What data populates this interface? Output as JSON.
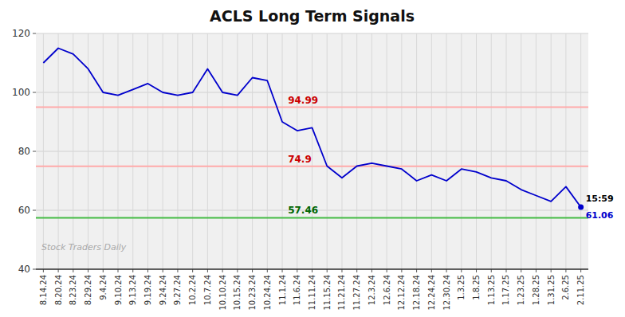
{
  "chart_data": {
    "type": "line",
    "title": "ACLS Long Term Signals",
    "categories": [
      "8.14.24",
      "8.20.24",
      "8.23.24",
      "8.29.24",
      "9.4.24",
      "9.10.24",
      "9.13.24",
      "9.19.24",
      "9.24.24",
      "9.27.24",
      "10.2.24",
      "10.7.24",
      "10.10.24",
      "10.15.24",
      "10.23.24",
      "10.24.24",
      "11.1.24",
      "11.6.24",
      "11.11.24",
      "11.15.24",
      "11.21.24",
      "11.27.24",
      "12.3.24",
      "12.6.24",
      "12.12.24",
      "12.18.24",
      "12.24.24",
      "12.30.24",
      "1.3.25",
      "1.8.25",
      "1.13.25",
      "1.17.25",
      "1.23.25",
      "1.28.25",
      "1.31.25",
      "2.6.25",
      "2.11.25"
    ],
    "values": [
      110,
      115,
      113,
      108,
      100,
      99,
      101,
      103,
      100,
      99,
      100,
      108,
      100,
      99,
      105,
      104,
      90,
      87,
      88,
      75,
      71,
      75,
      76,
      75,
      74,
      70,
      72,
      70,
      74,
      73,
      71,
      70,
      67,
      65,
      63,
      68,
      61.06
    ],
    "color": "#0000cc",
    "ylim": [
      40,
      120
    ],
    "yticks": [
      40,
      60,
      80,
      100,
      120
    ],
    "grid": true,
    "reference_lines": [
      {
        "value": 94.99,
        "label": "94.99",
        "color": "#ffaaaa",
        "label_color": "#cc0000"
      },
      {
        "value": 74.9,
        "label": "74.9",
        "color": "#ffaaaa",
        "label_color": "#cc0000"
      },
      {
        "value": 57.46,
        "label": "57.46",
        "color": "#44bb44",
        "label_color": "#006600"
      }
    ],
    "annotations": [
      "15:59",
      "61.06"
    ],
    "watermark": "Stock Traders Daily"
  }
}
